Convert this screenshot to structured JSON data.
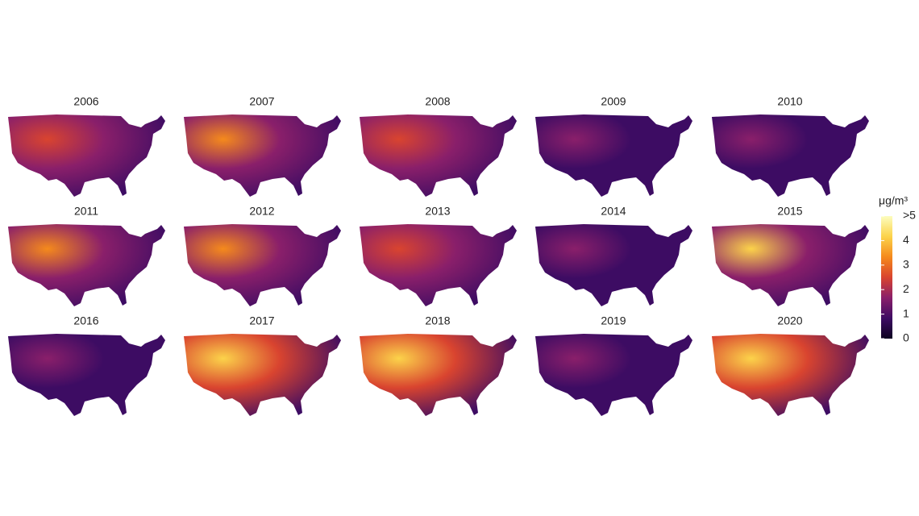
{
  "panels": [
    {
      "title": "2006"
    },
    {
      "title": "2007"
    },
    {
      "title": "2008"
    },
    {
      "title": "2009"
    },
    {
      "title": "2010"
    },
    {
      "title": "2011"
    },
    {
      "title": "2012"
    },
    {
      "title": "2013"
    },
    {
      "title": "2014"
    },
    {
      "title": "2015"
    },
    {
      "title": "2016"
    },
    {
      "title": "2017"
    },
    {
      "title": "2018"
    },
    {
      "title": "2019"
    },
    {
      "title": "2020"
    }
  ],
  "colorbar": {
    "title": "μg/m³",
    "range": [
      0,
      5
    ],
    "ticks": [
      0,
      1,
      2,
      3,
      4,
      {
        "value": 5,
        "label": ">5"
      }
    ],
    "colors": [
      "#0d0221",
      "#3d0c63",
      "#8a1f6a",
      "#d9442f",
      "#f58a1c",
      "#fcd34a",
      "#fcfdbf"
    ]
  }
}
